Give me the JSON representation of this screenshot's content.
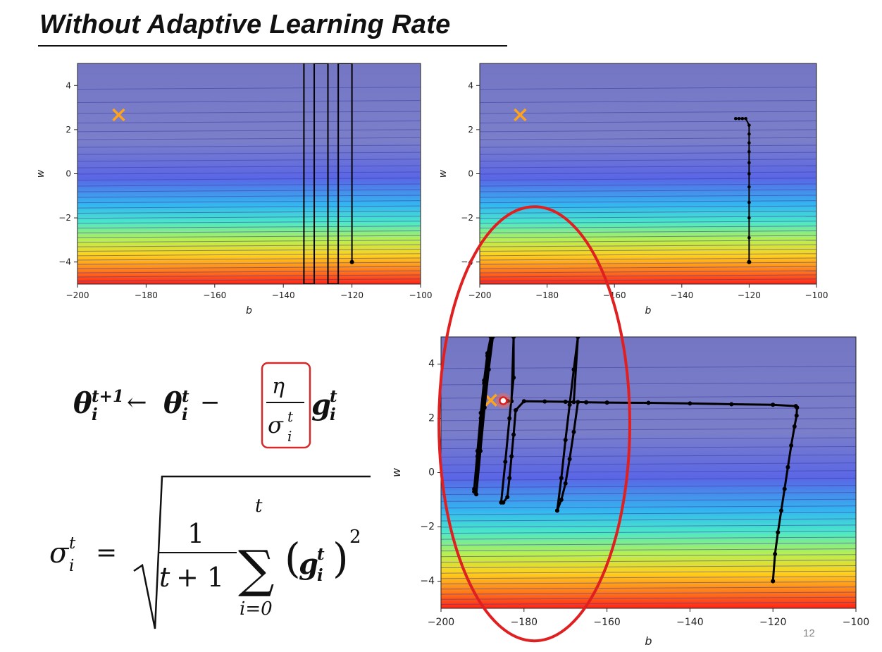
{
  "slide": {
    "title": "Without Adaptive Learning Rate",
    "page_number": "12"
  },
  "formulas": {
    "update_rule": "θ_i^{t+1} ← θ_i^t − (η / σ_i^t) g_i^t",
    "sigma_definition": "σ_i^t = sqrt( 1/(t+1) Σ_{i=0}^{t} (g_i^t)^2 )"
  },
  "colors": {
    "background_top": "#7b7fc7",
    "background_bottom": "#ff2a1c",
    "contour": "#3a3aa0",
    "path": "#000000",
    "target_marker": "#ffa31a",
    "highlight": "#e02020"
  },
  "chart_data": [
    {
      "type": "line",
      "xlabel": "b",
      "ylabel": "w",
      "xlim": [
        -200,
        -100
      ],
      "ylim": [
        -5,
        5
      ],
      "xticks": [
        -200,
        -180,
        -160,
        -140,
        -120,
        -100
      ],
      "yticks": [
        -4,
        -2,
        0,
        2,
        4
      ],
      "target": {
        "b": -188,
        "w": 2.67
      },
      "series": [
        {
          "x": [
            -120,
            -120,
            -124,
            -124,
            -127,
            -127,
            -131,
            -131,
            -134,
            -134
          ],
          "y": [
            -4,
            5,
            5,
            -5,
            -5,
            5,
            5,
            -5,
            -5,
            5
          ]
        }
      ],
      "start_point": {
        "b": -120,
        "w": -4
      }
    },
    {
      "type": "line",
      "xlabel": "b",
      "ylabel": "w",
      "xlim": [
        -200,
        -100
      ],
      "ylim": [
        -5,
        5
      ],
      "xticks": [
        -200,
        -180,
        -160,
        -140,
        -120,
        -100
      ],
      "yticks": [
        -4,
        -2,
        0,
        2,
        4
      ],
      "target": {
        "b": -188,
        "w": 2.67
      },
      "series": [
        {
          "x": [
            -120,
            -120,
            -120,
            -120,
            -120,
            -120,
            -120,
            -120,
            -120,
            -120,
            -120,
            -121,
            -122,
            -123,
            -124
          ],
          "y": [
            -4,
            -2.9,
            -2.0,
            -1.3,
            -0.6,
            0,
            0.5,
            1.0,
            1.4,
            1.8,
            2.2,
            2.5,
            2.5,
            2.5,
            2.5
          ]
        }
      ],
      "start_point": {
        "b": -120,
        "w": -4
      }
    },
    {
      "type": "line",
      "xlabel": "b",
      "ylabel": "w",
      "xlim": [
        -200,
        -100
      ],
      "ylim": [
        -5,
        5
      ],
      "xticks": [
        -200,
        -180,
        -160,
        -140,
        -120,
        -100
      ],
      "yticks": [
        -4,
        -2,
        0,
        2,
        4
      ],
      "target": {
        "b": -188,
        "w": 2.67
      },
      "series": [
        {
          "x": [
            -120,
            -119.5,
            -118.8,
            -118,
            -117.2,
            -116.4,
            -115.6,
            -114.8,
            -114.3,
            -114.2,
            -114.5,
            -120,
            -130,
            -140,
            -150,
            -160,
            -165,
            -167,
            -168,
            -169,
            -170,
            -171,
            -172,
            -172,
            -171,
            -170,
            -169,
            -168,
            -167,
            -168,
            -170,
            -175,
            -180,
            -182,
            -182.5,
            -183,
            -183.5,
            -184,
            -185,
            -185.5,
            -184.5,
            -183.5,
            -182.5,
            -182.5,
            -183,
            -184,
            -185
          ],
          "y": [
            -4,
            -3.0,
            -2.2,
            -1.4,
            -0.6,
            0.2,
            1.0,
            1.7,
            2.1,
            2.4,
            2.45,
            2.5,
            2.52,
            2.55,
            2.57,
            2.58,
            2.59,
            2.6,
            1.5,
            0.5,
            -0.4,
            -1.0,
            -1.4,
            -1.4,
            -0.2,
            1.2,
            2.5,
            3.8,
            5,
            2.6,
            2.61,
            2.62,
            2.63,
            2.3,
            1.4,
            0.6,
            -0.2,
            -0.9,
            -1.1,
            -1.1,
            0.4,
            2.0,
            3.5,
            5,
            2.63,
            2.64,
            2.65
          ]
        },
        {
          "x": [
            -192,
            -191.2,
            -190.4,
            -189.6,
            -188.8,
            -188,
            -192,
            -191.2,
            -190.4,
            -189.6,
            -188.8,
            -188,
            -191.5,
            -190.5,
            -189.5,
            -188.5,
            -187.5
          ],
          "y": [
            -0.6,
            0.8,
            2.2,
            3.4,
            4.4,
            5,
            -0.7,
            0.6,
            2.0,
            3.3,
            4.3,
            5,
            -0.8,
            0.8,
            2.4,
            3.8,
            5
          ]
        }
      ],
      "start_point": {
        "b": -120,
        "w": -4
      },
      "end_marker": {
        "b": -185,
        "w": 2.65
      },
      "highlight_ellipse": {
        "cx_b": -177.5,
        "cy_w": 1.8,
        "rx_b": 23,
        "ry_w": 8.0
      }
    }
  ]
}
